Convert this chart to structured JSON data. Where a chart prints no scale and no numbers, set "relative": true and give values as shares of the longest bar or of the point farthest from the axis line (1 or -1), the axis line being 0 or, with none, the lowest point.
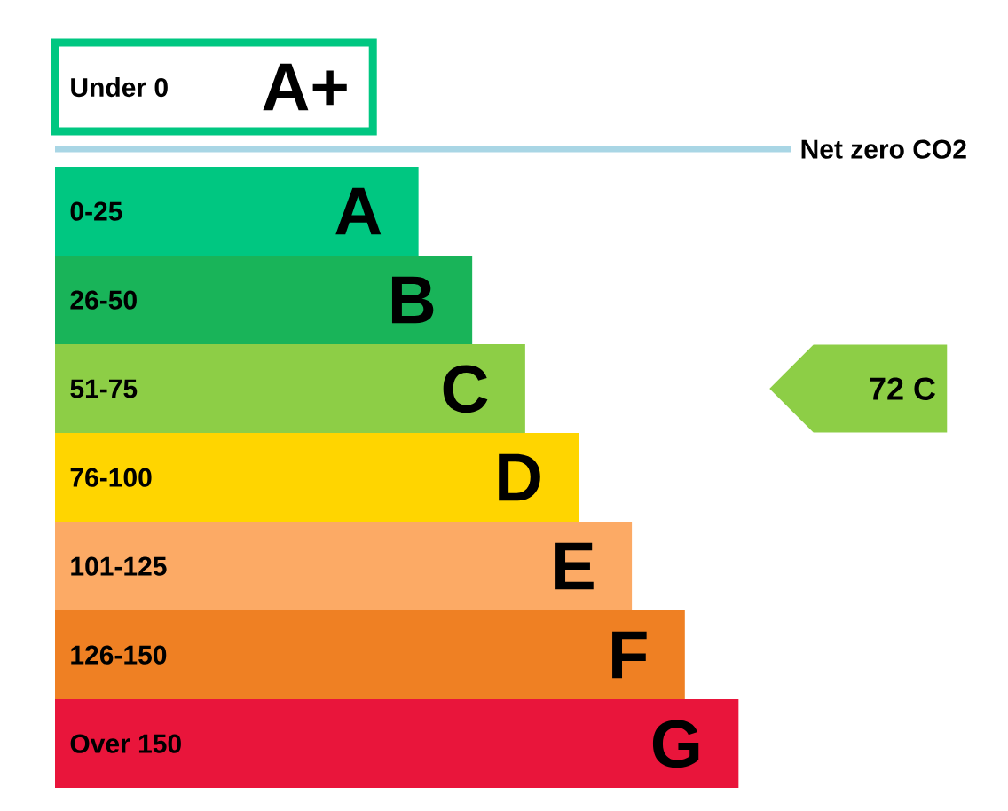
{
  "chart_data": {
    "type": "bar",
    "orientation": "horizontal",
    "relative": true,
    "categories": [
      "Under 0",
      null,
      "0-25",
      "26-50",
      "51-75",
      "76-100",
      "101-125",
      "126-150",
      "Over 150"
    ],
    "series": [
      {
        "values": [
          0.432,
          null,
          null,
          null,
          null,
          null,
          null,
          null,
          null
        ],
        "color": "#00c781",
        "line_style": "solid"
      },
      {
        "name": "Net zero CO2",
        "values": [
          null,
          1,
          null,
          null,
          null,
          null,
          null,
          null,
          null
        ],
        "color": "#a9d6e5"
      },
      {
        "values": [
          null,
          null,
          0.494,
          0.567,
          0.639,
          0.712,
          0.784,
          0.856,
          0.929
        ],
        "colors": [
          null,
          null,
          "#00c781",
          "#19b459",
          "#8dce46",
          "#ffd500",
          "#fcaa65",
          "#ef8023",
          "#e9153b"
        ]
      }
    ],
    "annotations": [
      {
        "text": "A+",
        "x": 0.432,
        "y": "Under 0"
      },
      {
        "text": "A",
        "x": 0.494,
        "y": "0-25"
      },
      {
        "text": "B",
        "x": 0.567,
        "y": "26-50"
      },
      {
        "text": "C",
        "x": 0.639,
        "y": "51-75"
      },
      {
        "text": "D",
        "x": 0.712,
        "y": "76-100"
      },
      {
        "text": "E",
        "x": 0.784,
        "y": "101-125"
      },
      {
        "text": "F",
        "x": 0.856,
        "y": "126-150"
      },
      {
        "text": "G",
        "x": 0.929,
        "y": "Over 150"
      },
      "72 C"
    ]
  }
}
